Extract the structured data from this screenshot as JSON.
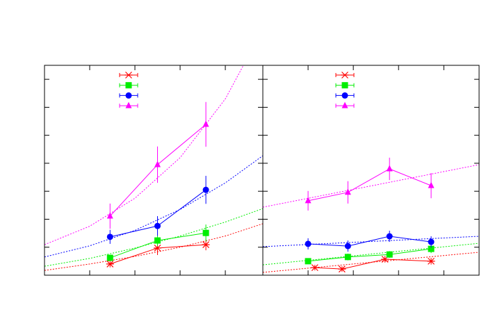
{
  "chart_data": [
    {
      "type": "line",
      "xlim": [
        0,
        4.83
      ],
      "ylim": [
        0,
        7.5
      ],
      "xticks": [
        1,
        2,
        3,
        4
      ],
      "yticks": [
        1,
        2,
        3,
        4,
        5,
        6,
        7
      ],
      "series": [
        {
          "color": "#ff0000",
          "marker": "star",
          "x": [
            1.45,
            2.5,
            3.57
          ],
          "values": [
            0.4,
            0.97,
            1.09
          ],
          "errors": [
            0.12,
            0.25,
            0.2
          ],
          "fit": {
            "x": [
              0,
              1,
              2,
              3,
              4,
              4.83
            ],
            "values": [
              0.17,
              0.4,
              0.67,
              1.0,
              1.4,
              1.84
            ]
          }
        },
        {
          "color": "#00ee00",
          "marker": "square",
          "x": [
            1.45,
            2.5,
            3.57
          ],
          "values": [
            0.62,
            1.24,
            1.51
          ],
          "errors": [
            0.1,
            0.2,
            0.3
          ],
          "fit": {
            "x": [
              0,
              1,
              2,
              3,
              4,
              4.83
            ],
            "values": [
              0.32,
              0.6,
              0.97,
              1.4,
              1.9,
              2.38
            ]
          }
        },
        {
          "color": "#0000ff",
          "marker": "circle",
          "x": [
            1.45,
            2.5,
            3.57
          ],
          "values": [
            1.37,
            1.76,
            3.05
          ],
          "errors": [
            0.25,
            0.35,
            0.5
          ],
          "fit": {
            "x": [
              0,
              1,
              2,
              3,
              4,
              4.83
            ],
            "values": [
              0.65,
              1.05,
              1.6,
              2.35,
              3.3,
              4.27
            ]
          }
        },
        {
          "color": "#ff00ff",
          "marker": "triangle",
          "x": [
            1.45,
            2.5,
            3.57
          ],
          "values": [
            2.11,
            3.95,
            5.39
          ],
          "errors": [
            0.45,
            0.65,
            0.8
          ],
          "fit": {
            "x": [
              0,
              1,
              2,
              3,
              4,
              4.4
            ],
            "values": [
              1.09,
              1.75,
              2.75,
              4.2,
              6.3,
              7.5
            ]
          }
        }
      ]
    },
    {
      "type": "line",
      "xlim": [
        0,
        4.78
      ],
      "ylim": [
        0,
        7.5
      ],
      "xticks": [
        1,
        2,
        3,
        4
      ],
      "yticks": [
        1,
        2,
        3,
        4,
        5,
        6,
        7
      ],
      "series": [
        {
          "color": "#ff0000",
          "marker": "star",
          "x": [
            1.15,
            1.75,
            2.7,
            3.72
          ],
          "values": [
            0.27,
            0.22,
            0.57,
            0.5
          ],
          "errors": [
            0.1,
            0.1,
            0.12,
            0.12
          ],
          "fit": {
            "x": [
              0,
              4.78
            ],
            "values": [
              0.1,
              0.82
            ]
          }
        },
        {
          "color": "#00ee00",
          "marker": "square",
          "x": [
            1.0,
            1.88,
            2.8,
            3.72
          ],
          "values": [
            0.5,
            0.65,
            0.74,
            0.94
          ],
          "errors": [
            0.1,
            0.12,
            0.12,
            0.15
          ],
          "fit": {
            "x": [
              0,
              4.78
            ],
            "values": [
              0.37,
              1.14
            ]
          }
        },
        {
          "color": "#0000ff",
          "marker": "circle",
          "x": [
            1.0,
            1.88,
            2.8,
            3.72
          ],
          "values": [
            1.12,
            1.04,
            1.39,
            1.19
          ],
          "errors": [
            0.2,
            0.2,
            0.2,
            0.2
          ],
          "fit": {
            "x": [
              0,
              4.78
            ],
            "values": [
              1.02,
              1.39
            ]
          }
        },
        {
          "color": "#ff00ff",
          "marker": "triangle",
          "x": [
            1.0,
            1.88,
            2.8,
            3.72
          ],
          "values": [
            2.66,
            2.96,
            3.8,
            3.2
          ],
          "errors": [
            0.35,
            0.4,
            0.4,
            0.45
          ],
          "fit": {
            "x": [
              0,
              4.78
            ],
            "values": [
              2.43,
              3.95
            ]
          }
        }
      ]
    }
  ]
}
